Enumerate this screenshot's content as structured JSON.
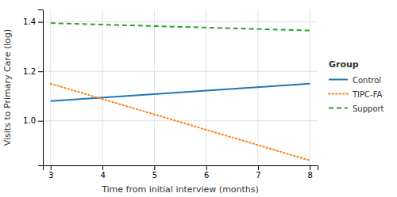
{
  "chart_data": {
    "type": "line",
    "x": [
      3,
      8
    ],
    "series": [
      {
        "name": "Control",
        "values": [
          1.08,
          1.15
        ],
        "line_style": "solid"
      },
      {
        "name": "TIPC-FA",
        "values": [
          1.15,
          0.84
        ],
        "line_style": "dotted"
      },
      {
        "name": "Support",
        "values": [
          1.395,
          1.365
        ],
        "line_style": "dashed"
      }
    ],
    "xlabel": "Time from initial interview (months)",
    "ylabel": "Visits to Primary Care (log)",
    "legend_title": "Group",
    "legend": "right",
    "grid": true,
    "xlim": [
      2.85,
      8.15
    ],
    "xticks": [
      3,
      4,
      5,
      6,
      7,
      8
    ],
    "ylim": [
      0.82,
      1.45
    ],
    "yticks": [
      {
        "value": 1.0,
        "label": "1.0"
      },
      1.2,
      1.4
    ]
  }
}
